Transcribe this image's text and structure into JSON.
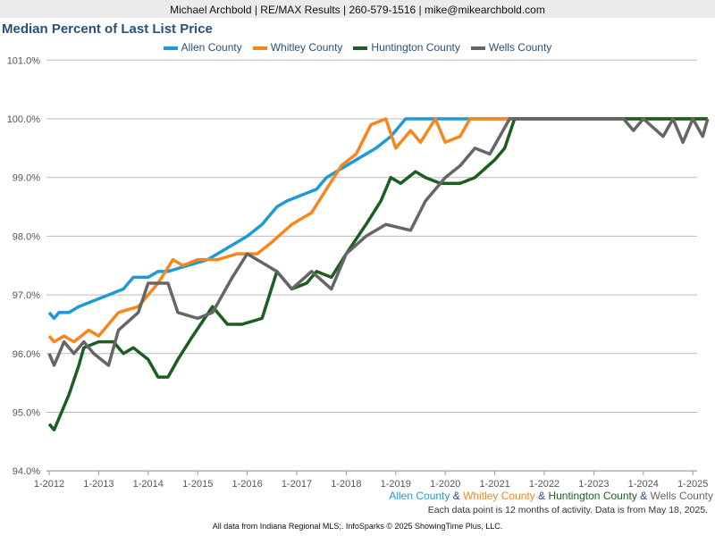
{
  "header": {
    "contact": "Michael Archbold | RE/MAX Results | 260-579-1516 | mike@mikearchbold.com"
  },
  "colors": {
    "Allen County": "#1e9ad6",
    "Whitley County": "#f7861f",
    "Huntington County": "#1b5e20",
    "Wells County": "#666666"
  },
  "bottom_legend": {
    "sep": " & "
  },
  "note": "Each data point is 12 months of activity. Data is from May 18, 2025.",
  "footer": "All data from Indiana Regional MLS;. InfoSparks © 2025 ShowingTime Plus, LLC.",
  "chart_data": {
    "type": "line",
    "title": "Median Percent of Last List Price",
    "ylabel": "",
    "xlabel": "",
    "ylim": [
      94,
      101
    ],
    "xlim": [
      2012,
      2025.3
    ],
    "yticks": [
      "94.0%",
      "95.0%",
      "96.0%",
      "97.0%",
      "98.0%",
      "99.0%",
      "100.0%",
      "101.0%"
    ],
    "xticks": [
      "1-2012",
      "1-2013",
      "1-2014",
      "1-2015",
      "1-2016",
      "1-2017",
      "1-2018",
      "1-2019",
      "1-2020",
      "1-2021",
      "1-2022",
      "1-2023",
      "1-2024",
      "1-2025"
    ],
    "legend": "top",
    "series": [
      {
        "name": "Allen County",
        "points": [
          [
            2012,
            96.7
          ],
          [
            2012.1,
            96.6
          ],
          [
            2012.2,
            96.7
          ],
          [
            2012.4,
            96.7
          ],
          [
            2012.6,
            96.8
          ],
          [
            2012.9,
            96.9
          ],
          [
            2013.2,
            97.0
          ],
          [
            2013.5,
            97.1
          ],
          [
            2013.7,
            97.3
          ],
          [
            2014,
            97.3
          ],
          [
            2014.2,
            97.4
          ],
          [
            2014.4,
            97.4
          ],
          [
            2014.8,
            97.5
          ],
          [
            2015.2,
            97.6
          ],
          [
            2015.4,
            97.7
          ],
          [
            2015.6,
            97.8
          ],
          [
            2015.8,
            97.9
          ],
          [
            2016,
            98.0
          ],
          [
            2016.3,
            98.2
          ],
          [
            2016.6,
            98.5
          ],
          [
            2016.8,
            98.6
          ],
          [
            2017.1,
            98.7
          ],
          [
            2017.4,
            98.8
          ],
          [
            2017.6,
            99.0
          ],
          [
            2018,
            99.2
          ],
          [
            2018.4,
            99.4
          ],
          [
            2018.6,
            99.5
          ],
          [
            2018.9,
            99.7
          ],
          [
            2019.2,
            100
          ],
          [
            2025.3,
            100
          ]
        ]
      },
      {
        "name": "Whitley County",
        "points": [
          [
            2012,
            96.3
          ],
          [
            2012.1,
            96.2
          ],
          [
            2012.3,
            96.3
          ],
          [
            2012.5,
            96.2
          ],
          [
            2012.8,
            96.4
          ],
          [
            2013,
            96.3
          ],
          [
            2013.2,
            96.5
          ],
          [
            2013.4,
            96.7
          ],
          [
            2013.8,
            96.8
          ],
          [
            2014,
            97.0
          ],
          [
            2014.2,
            97.2
          ],
          [
            2014.5,
            97.6
          ],
          [
            2014.7,
            97.5
          ],
          [
            2015,
            97.6
          ],
          [
            2015.4,
            97.6
          ],
          [
            2015.8,
            97.7
          ],
          [
            2016.2,
            97.7
          ],
          [
            2016.5,
            97.9
          ],
          [
            2016.9,
            98.2
          ],
          [
            2017.3,
            98.4
          ],
          [
            2017.6,
            98.8
          ],
          [
            2017.9,
            99.2
          ],
          [
            2018.2,
            99.4
          ],
          [
            2018.5,
            99.9
          ],
          [
            2018.8,
            100
          ],
          [
            2019,
            99.5
          ],
          [
            2019.3,
            99.8
          ],
          [
            2019.5,
            99.6
          ],
          [
            2019.8,
            100
          ],
          [
            2020,
            99.6
          ],
          [
            2020.3,
            99.7
          ],
          [
            2020.5,
            100
          ],
          [
            2025.3,
            100
          ]
        ]
      },
      {
        "name": "Huntington County",
        "points": [
          [
            2012,
            94.8
          ],
          [
            2012.1,
            94.7
          ],
          [
            2012.4,
            95.3
          ],
          [
            2012.6,
            95.8
          ],
          [
            2012.7,
            96.1
          ],
          [
            2013,
            96.2
          ],
          [
            2013.3,
            96.2
          ],
          [
            2013.5,
            96.0
          ],
          [
            2013.7,
            96.1
          ],
          [
            2014,
            95.9
          ],
          [
            2014.2,
            95.6
          ],
          [
            2014.4,
            95.6
          ],
          [
            2014.6,
            95.9
          ],
          [
            2014.9,
            96.3
          ],
          [
            2015.3,
            96.8
          ],
          [
            2015.6,
            96.5
          ],
          [
            2015.9,
            96.5
          ],
          [
            2016.3,
            96.6
          ],
          [
            2016.6,
            97.4
          ],
          [
            2016.9,
            97.1
          ],
          [
            2017.2,
            97.2
          ],
          [
            2017.4,
            97.4
          ],
          [
            2017.7,
            97.3
          ],
          [
            2018,
            97.7
          ],
          [
            2018.4,
            98.2
          ],
          [
            2018.7,
            98.6
          ],
          [
            2018.9,
            99.0
          ],
          [
            2019.1,
            98.9
          ],
          [
            2019.4,
            99.1
          ],
          [
            2019.6,
            99.0
          ],
          [
            2019.9,
            98.9
          ],
          [
            2020.3,
            98.9
          ],
          [
            2020.6,
            99.0
          ],
          [
            2021,
            99.3
          ],
          [
            2021.2,
            99.5
          ],
          [
            2021.4,
            100
          ],
          [
            2025.3,
            100
          ]
        ]
      },
      {
        "name": "Wells County",
        "points": [
          [
            2012,
            96.0
          ],
          [
            2012.1,
            95.8
          ],
          [
            2012.3,
            96.2
          ],
          [
            2012.5,
            96.0
          ],
          [
            2012.7,
            96.2
          ],
          [
            2012.9,
            96.0
          ],
          [
            2013.2,
            95.8
          ],
          [
            2013.4,
            96.4
          ],
          [
            2013.8,
            96.7
          ],
          [
            2014,
            97.2
          ],
          [
            2014.4,
            97.2
          ],
          [
            2014.6,
            96.7
          ],
          [
            2015,
            96.6
          ],
          [
            2015.3,
            96.7
          ],
          [
            2015.7,
            97.3
          ],
          [
            2016,
            97.7
          ],
          [
            2016.4,
            97.5
          ],
          [
            2016.6,
            97.4
          ],
          [
            2016.9,
            97.1
          ],
          [
            2017.3,
            97.4
          ],
          [
            2017.7,
            97.1
          ],
          [
            2018,
            97.7
          ],
          [
            2018.4,
            98.0
          ],
          [
            2018.8,
            98.2
          ],
          [
            2019.3,
            98.1
          ],
          [
            2019.6,
            98.6
          ],
          [
            2020,
            99.0
          ],
          [
            2020.3,
            99.2
          ],
          [
            2020.6,
            99.5
          ],
          [
            2020.9,
            99.4
          ],
          [
            2021.3,
            100
          ],
          [
            2023.6,
            100
          ],
          [
            2023.8,
            99.8
          ],
          [
            2024,
            100
          ],
          [
            2024.4,
            99.7
          ],
          [
            2024.6,
            100
          ],
          [
            2024.8,
            99.6
          ],
          [
            2025,
            100
          ],
          [
            2025.2,
            99.7
          ],
          [
            2025.3,
            100
          ]
        ]
      }
    ]
  }
}
